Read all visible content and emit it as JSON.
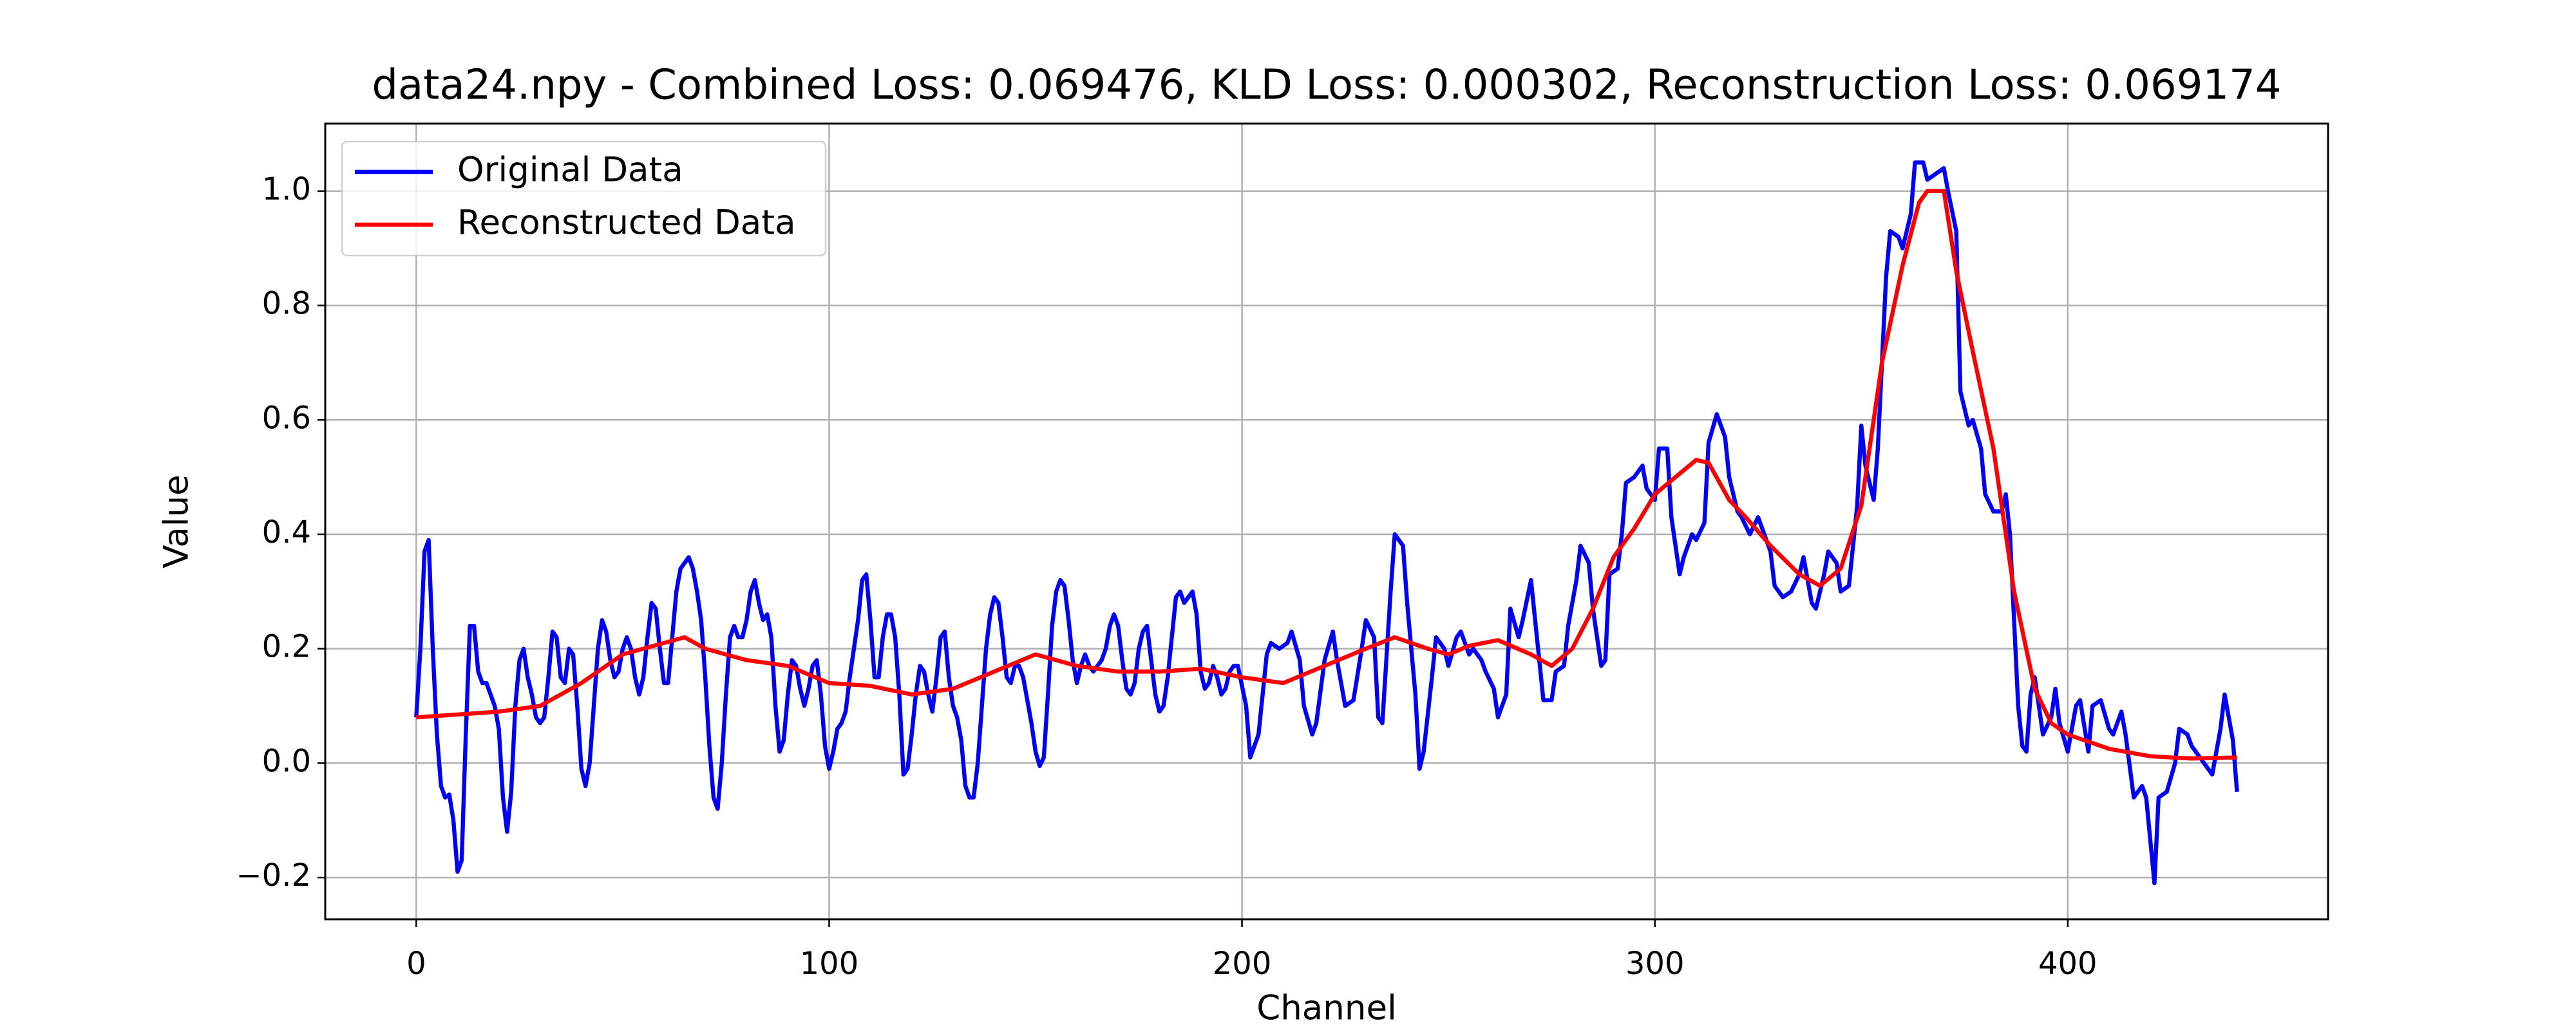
{
  "chart_data": {
    "type": "line",
    "title": "data24.npy - Combined Loss: 0.069476, KLD Loss: 0.000302, Reconstruction Loss: 0.069174",
    "x_label": "Channel",
    "y_label": "Value",
    "xlim": [
      -22.05,
      463.05
    ],
    "ylim": [
      -0.273,
      1.118
    ],
    "xticks": [
      0,
      100,
      200,
      300,
      400
    ],
    "yticks": [
      {
        "value": -0.2,
        "label": "−0.2"
      },
      {
        "value": 0,
        "label": "0.0"
      },
      0.2,
      0.4,
      0.6,
      0.8,
      {
        "value": 1,
        "label": "1.0"
      }
    ],
    "grid": true,
    "legend": "upper left",
    "series": [
      {
        "name": "Original Data",
        "color": "#0000ff",
        "x": [
          0,
          1,
          2,
          3,
          4,
          5,
          6,
          7,
          8,
          9,
          10,
          11,
          12,
          13,
          14,
          15,
          16,
          17,
          18,
          19,
          20,
          21,
          22,
          23,
          24,
          25,
          26,
          27,
          28,
          29,
          30,
          31,
          32,
          33,
          34,
          35,
          36,
          37,
          38,
          39,
          40,
          41,
          42,
          43,
          44,
          45,
          46,
          47,
          48,
          49,
          50,
          51,
          52,
          53,
          54,
          55,
          56,
          57,
          58,
          59,
          60,
          61,
          62,
          63,
          64,
          65,
          66,
          67,
          68,
          69,
          70,
          71,
          72,
          73,
          74,
          75,
          76,
          77,
          78,
          79,
          80,
          81,
          82,
          83,
          84,
          85,
          86,
          87,
          88,
          89,
          90,
          91,
          92,
          93,
          94,
          95,
          96,
          97,
          98,
          99,
          100,
          101,
          102,
          103,
          104,
          105,
          106,
          107,
          108,
          109,
          110,
          111,
          112,
          113,
          114,
          115,
          116,
          117,
          118,
          119,
          120,
          121,
          122,
          123,
          124,
          125,
          126,
          127,
          128,
          129,
          130,
          131,
          132,
          133,
          134,
          135,
          136,
          137,
          138,
          139,
          140,
          141,
          142,
          143,
          144,
          145,
          146,
          147,
          148,
          149,
          150,
          151,
          152,
          153,
          154,
          155,
          156,
          157,
          158,
          159,
          160,
          161,
          162,
          163,
          164,
          165,
          166,
          167,
          168,
          169,
          170,
          171,
          172,
          173,
          174,
          175,
          176,
          177,
          178,
          179,
          180,
          181,
          182,
          183,
          184,
          185,
          186,
          187,
          188,
          189,
          190,
          191,
          192,
          193,
          194,
          195,
          196,
          197,
          198,
          199,
          201,
          202,
          204,
          206,
          207,
          209,
          211,
          212,
          214,
          215,
          217,
          218,
          220,
          222,
          223,
          225,
          227,
          229,
          230,
          232,
          233,
          234,
          236,
          237,
          239,
          240,
          242,
          243,
          244,
          246,
          247,
          249,
          250,
          252,
          253,
          255,
          256,
          258,
          259,
          261,
          262,
          264,
          265,
          267,
          268,
          270,
          271,
          273,
          275,
          276,
          278,
          279,
          281,
          282,
          284,
          285,
          287,
          288,
          289,
          291,
          292,
          293,
          295,
          297,
          298,
          300,
          301,
          303,
          304,
          306,
          307,
          309,
          310,
          312,
          313,
          315,
          317,
          318,
          320,
          321,
          323,
          325,
          326,
          328,
          329,
          331,
          333,
          335,
          336,
          338,
          339,
          341,
          342,
          344,
          345,
          347,
          349,
          350,
          351,
          353,
          354,
          356,
          357,
          359,
          360,
          362,
          363,
          365,
          366,
          368,
          370,
          371,
          373,
          374,
          376,
          377,
          379,
          380,
          382,
          384,
          385,
          386,
          388,
          389,
          390,
          391,
          392,
          394,
          396,
          397,
          398,
          400,
          402,
          403,
          405,
          406,
          408,
          410,
          411,
          413,
          414,
          416,
          418,
          419,
          421,
          422,
          424,
          426,
          427,
          429,
          430,
          432,
          434,
          435,
          437,
          438,
          440,
          441
        ],
        "values": [
          0.08,
          0.2,
          0.37,
          0.39,
          0.2,
          0.05,
          -0.04,
          -0.06,
          -0.055,
          -0.1,
          -0.19,
          -0.17,
          0.05,
          0.24,
          0.24,
          0.16,
          0.14,
          0.14,
          0.12,
          0.1,
          0.06,
          -0.06,
          -0.12,
          -0.05,
          0.1,
          0.18,
          0.2,
          0.15,
          0.12,
          0.08,
          0.07,
          0.08,
          0.15,
          0.23,
          0.22,
          0.15,
          0.14,
          0.2,
          0.19,
          0.1,
          -0.01,
          -0.04,
          0.0,
          0.1,
          0.2,
          0.25,
          0.23,
          0.18,
          0.15,
          0.16,
          0.2,
          0.22,
          0.2,
          0.15,
          0.12,
          0.15,
          0.22,
          0.28,
          0.27,
          0.2,
          0.14,
          0.14,
          0.22,
          0.3,
          0.34,
          0.35,
          0.36,
          0.34,
          0.3,
          0.25,
          0.15,
          0.03,
          -0.06,
          -0.08,
          0.0,
          0.12,
          0.22,
          0.24,
          0.22,
          0.22,
          0.25,
          0.3,
          0.32,
          0.28,
          0.25,
          0.26,
          0.22,
          0.1,
          0.02,
          0.04,
          0.12,
          0.18,
          0.17,
          0.13,
          0.1,
          0.13,
          0.17,
          0.18,
          0.12,
          0.03,
          -0.01,
          0.02,
          0.06,
          0.07,
          0.09,
          0.15,
          0.2,
          0.25,
          0.32,
          0.33,
          0.25,
          0.15,
          0.15,
          0.22,
          0.26,
          0.26,
          0.22,
          0.12,
          -0.02,
          -0.01,
          0.05,
          0.12,
          0.17,
          0.16,
          0.12,
          0.09,
          0.15,
          0.22,
          0.23,
          0.15,
          0.1,
          0.08,
          0.04,
          -0.04,
          -0.06,
          -0.06,
          0.0,
          0.1,
          0.2,
          0.26,
          0.29,
          0.28,
          0.22,
          0.15,
          0.14,
          0.17,
          0.17,
          0.15,
          0.11,
          0.07,
          0.02,
          -0.005,
          0.01,
          0.12,
          0.24,
          0.3,
          0.32,
          0.31,
          0.25,
          0.18,
          0.14,
          0.17,
          0.19,
          0.17,
          0.16,
          0.17,
          0.18,
          0.2,
          0.24,
          0.26,
          0.24,
          0.18,
          0.13,
          0.12,
          0.14,
          0.2,
          0.23,
          0.24,
          0.18,
          0.12,
          0.09,
          0.1,
          0.15,
          0.22,
          0.29,
          0.3,
          0.28,
          0.29,
          0.3,
          0.26,
          0.16,
          0.13,
          0.14,
          0.17,
          0.15,
          0.12,
          0.13,
          0.16,
          0.17,
          0.17,
          0.1,
          0.01,
          0.05,
          0.19,
          0.21,
          0.2,
          0.21,
          0.23,
          0.18,
          0.1,
          0.05,
          0.07,
          0.18,
          0.23,
          0.18,
          0.1,
          0.11,
          0.2,
          0.25,
          0.22,
          0.08,
          0.07,
          0.3,
          0.4,
          0.38,
          0.28,
          0.12,
          -0.01,
          0.02,
          0.15,
          0.22,
          0.2,
          0.17,
          0.22,
          0.23,
          0.19,
          0.2,
          0.18,
          0.16,
          0.13,
          0.08,
          0.12,
          0.27,
          0.22,
          0.25,
          0.32,
          0.25,
          0.11,
          0.11,
          0.16,
          0.17,
          0.24,
          0.32,
          0.38,
          0.35,
          0.27,
          0.17,
          0.18,
          0.33,
          0.34,
          0.4,
          0.49,
          0.5,
          0.52,
          0.48,
          0.46,
          0.55,
          0.55,
          0.43,
          0.33,
          0.36,
          0.4,
          0.39,
          0.42,
          0.56,
          0.61,
          0.57,
          0.5,
          0.44,
          0.43,
          0.4,
          0.43,
          0.41,
          0.37,
          0.31,
          0.29,
          0.3,
          0.33,
          0.36,
          0.28,
          0.27,
          0.33,
          0.37,
          0.35,
          0.3,
          0.31,
          0.45,
          0.59,
          0.52,
          0.46,
          0.55,
          0.85,
          0.93,
          0.92,
          0.9,
          0.96,
          1.05,
          1.05,
          1.02,
          1.03,
          1.04,
          1.0,
          0.93,
          0.65,
          0.59,
          0.6,
          0.55,
          0.47,
          0.44,
          0.44,
          0.47,
          0.4,
          0.1,
          0.03,
          0.02,
          0.12,
          0.15,
          0.05,
          0.08,
          0.13,
          0.07,
          0.02,
          0.1,
          0.11,
          0.02,
          0.1,
          0.11,
          0.06,
          0.05,
          0.09,
          0.05,
          -0.06,
          -0.04,
          -0.06,
          -0.21,
          -0.06,
          -0.05,
          0.0,
          0.06,
          0.05,
          0.03,
          0.01,
          -0.01,
          -0.02,
          0.06,
          0.12,
          0.04,
          -0.05
        ]
      },
      {
        "name": "Reconstructed Data",
        "color": "#ff0000",
        "x": [
          0,
          10,
          20,
          30,
          40,
          50,
          60,
          65,
          70,
          80,
          90,
          100,
          110,
          120,
          130,
          140,
          150,
          160,
          170,
          180,
          190,
          200,
          210,
          220,
          230,
          237,
          245,
          250,
          255,
          262,
          270,
          275,
          280,
          285,
          290,
          295,
          300,
          305,
          310,
          313,
          318,
          322,
          328,
          335,
          340,
          345,
          350,
          355,
          360,
          364,
          366,
          370,
          373,
          377,
          382,
          387,
          392,
          396,
          400,
          410,
          420,
          430,
          441
        ],
        "values": [
          0.08,
          0.085,
          0.09,
          0.1,
          0.14,
          0.19,
          0.21,
          0.22,
          0.2,
          0.18,
          0.17,
          0.14,
          0.135,
          0.12,
          0.13,
          0.16,
          0.19,
          0.17,
          0.16,
          0.16,
          0.165,
          0.15,
          0.14,
          0.17,
          0.2,
          0.22,
          0.2,
          0.19,
          0.205,
          0.215,
          0.19,
          0.17,
          0.2,
          0.27,
          0.36,
          0.41,
          0.47,
          0.5,
          0.53,
          0.525,
          0.46,
          0.43,
          0.38,
          0.33,
          0.31,
          0.34,
          0.45,
          0.7,
          0.87,
          0.98,
          1.0,
          1.0,
          0.86,
          0.72,
          0.55,
          0.3,
          0.13,
          0.07,
          0.05,
          0.025,
          0.012,
          0.008,
          0.01
        ]
      }
    ]
  }
}
